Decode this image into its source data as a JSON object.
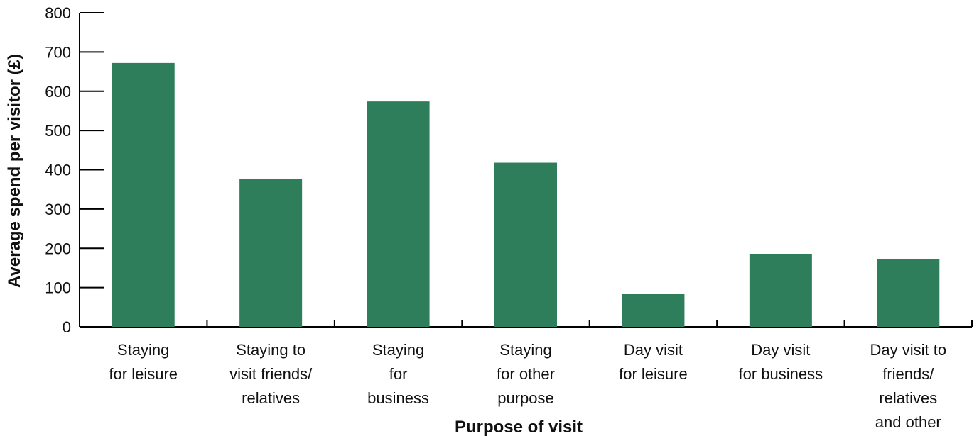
{
  "chart_data": {
    "type": "bar",
    "xlabel": "Purpose of visit",
    "ylabel": "Average spend per visitor (£)",
    "ylim": [
      0,
      800
    ],
    "yticks": [
      0,
      100,
      200,
      300,
      400,
      500,
      600,
      700,
      800
    ],
    "grid": false,
    "legend": "none",
    "bar_color": "#2e7d5b",
    "categories": [
      [
        "Staying",
        "for leisure"
      ],
      [
        "Staying to",
        "visit friends/",
        "relatives"
      ],
      [
        "Staying",
        "for",
        "business"
      ],
      [
        "Staying",
        "for other",
        "purpose"
      ],
      [
        "Day visit",
        "for leisure"
      ],
      [
        "Day visit",
        "for business"
      ],
      [
        "Day visit to",
        "friends/",
        "relatives",
        "and other"
      ]
    ],
    "values": [
      672,
      376,
      574,
      418,
      84,
      186,
      172
    ]
  }
}
